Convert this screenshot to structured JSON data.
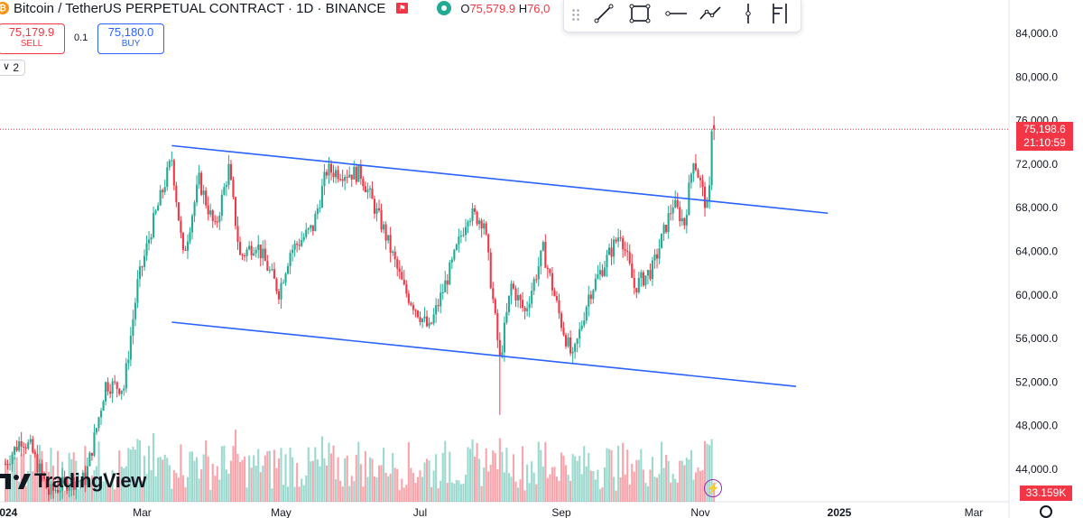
{
  "header": {
    "coin_glyph": "₿",
    "title": "Bitcoin / TetherUS PERPETUAL CONTRACT · 1D · BINANCE",
    "flag_glyph": "⚑",
    "ohlc_open_label": "O",
    "ohlc_open_value": "75,579.9",
    "ohlc_high_label": "H",
    "ohlc_high_value": "76,0"
  },
  "trade": {
    "sell_price": "75,179.9",
    "sell_label": "SELL",
    "spread": "0.1",
    "buy_price": "75,180.0",
    "buy_label": "BUY"
  },
  "indicators": {
    "collapse_count": "2",
    "collapse_glyph": "∨"
  },
  "drawing_toolbar": {
    "tools": [
      "trend-line-icon",
      "rectangle-icon",
      "horizontal-ray-icon",
      "path-icon",
      "vertical-line-icon",
      "fib-icon"
    ]
  },
  "price_scale": {
    "current_price": "75,198.6",
    "countdown": "21:10:59",
    "volume": "33.159K"
  },
  "branding": {
    "logo_text": "TradingView"
  },
  "colors": {
    "up": "#22ab94",
    "down": "#f23645",
    "trendline": "#2962ff",
    "accent": "#9c27b0"
  },
  "chart_data": {
    "type": "candlestick",
    "symbol": "BTCUSDT.P",
    "interval": "1D",
    "ylim": [
      41000,
      86000
    ],
    "y_ticks": [
      "84,000.0",
      "80,000.0",
      "76,000.0",
      "72,000.0",
      "68,000.0",
      "64,000.0",
      "60,000.0",
      "56,000.0",
      "52,000.0",
      "48,000.0",
      "44,000.0"
    ],
    "y_tick_values": [
      84000,
      80000,
      76000,
      72000,
      68000,
      64000,
      60000,
      56000,
      52000,
      48000,
      44000
    ],
    "x_ticks": [
      "2024",
      "Mar",
      "May",
      "Jul",
      "Sep",
      "Nov",
      "2025",
      "Mar"
    ],
    "x_tick_dates": [
      "2024-01-01",
      "2024-03-01",
      "2024-05-01",
      "2024-07-01",
      "2024-09-01",
      "2024-11-01",
      "2025-01-01",
      "2025-03-01"
    ],
    "x_range": [
      "2024-01-01",
      "2025-04-04"
    ],
    "current_price": 75198.6,
    "series": [
      {
        "kind": "close_path",
        "points": [
          [
            "2024-01-01",
            44500
          ],
          [
            "2024-01-08",
            46800
          ],
          [
            "2024-01-12",
            46000
          ],
          [
            "2024-01-20",
            41800
          ],
          [
            "2024-01-28",
            42800
          ],
          [
            "2024-02-05",
            43100
          ],
          [
            "2024-02-10",
            47800
          ],
          [
            "2024-02-14",
            51800
          ],
          [
            "2024-02-22",
            51500
          ],
          [
            "2024-02-28",
            61000
          ],
          [
            "2024-03-05",
            66000
          ],
          [
            "2024-03-14",
            72500
          ],
          [
            "2024-03-19",
            63500
          ],
          [
            "2024-03-26",
            70500
          ],
          [
            "2024-04-02",
            66000
          ],
          [
            "2024-04-08",
            71600
          ],
          [
            "2024-04-13",
            63500
          ],
          [
            "2024-04-20",
            64800
          ],
          [
            "2024-04-30",
            60300
          ],
          [
            "2024-05-05",
            64000
          ],
          [
            "2024-05-15",
            66200
          ],
          [
            "2024-05-21",
            71400
          ],
          [
            "2024-06-05",
            71100
          ],
          [
            "2024-06-15",
            66000
          ],
          [
            "2024-06-24",
            60500
          ],
          [
            "2024-07-05",
            56800
          ],
          [
            "2024-07-15",
            62800
          ],
          [
            "2024-07-22",
            67500
          ],
          [
            "2024-07-29",
            66800
          ],
          [
            "2024-08-05",
            54000
          ],
          [
            "2024-08-10",
            60900
          ],
          [
            "2024-08-16",
            58400
          ],
          [
            "2024-08-24",
            64100
          ],
          [
            "2024-09-01",
            57400
          ],
          [
            "2024-09-06",
            54000
          ],
          [
            "2024-09-13",
            60000
          ],
          [
            "2024-09-27",
            65800
          ],
          [
            "2024-10-03",
            60700
          ],
          [
            "2024-10-11",
            62400
          ],
          [
            "2024-10-20",
            68400
          ],
          [
            "2024-10-25",
            66600
          ],
          [
            "2024-10-29",
            72700
          ],
          [
            "2024-11-04",
            67800
          ],
          [
            "2024-11-05",
            69500
          ],
          [
            "2024-11-06",
            75580
          ],
          [
            "2024-11-07",
            75199
          ]
        ]
      },
      {
        "kind": "volume",
        "last": 33159
      }
    ],
    "trendlines": [
      {
        "name": "upper",
        "from": [
          "2024-03-14",
          73700
        ],
        "to": [
          "2024-12-27",
          67500
        ]
      },
      {
        "name": "lower",
        "from": [
          "2024-03-14",
          57500
        ],
        "to": [
          "2024-12-13",
          51600
        ]
      }
    ]
  }
}
